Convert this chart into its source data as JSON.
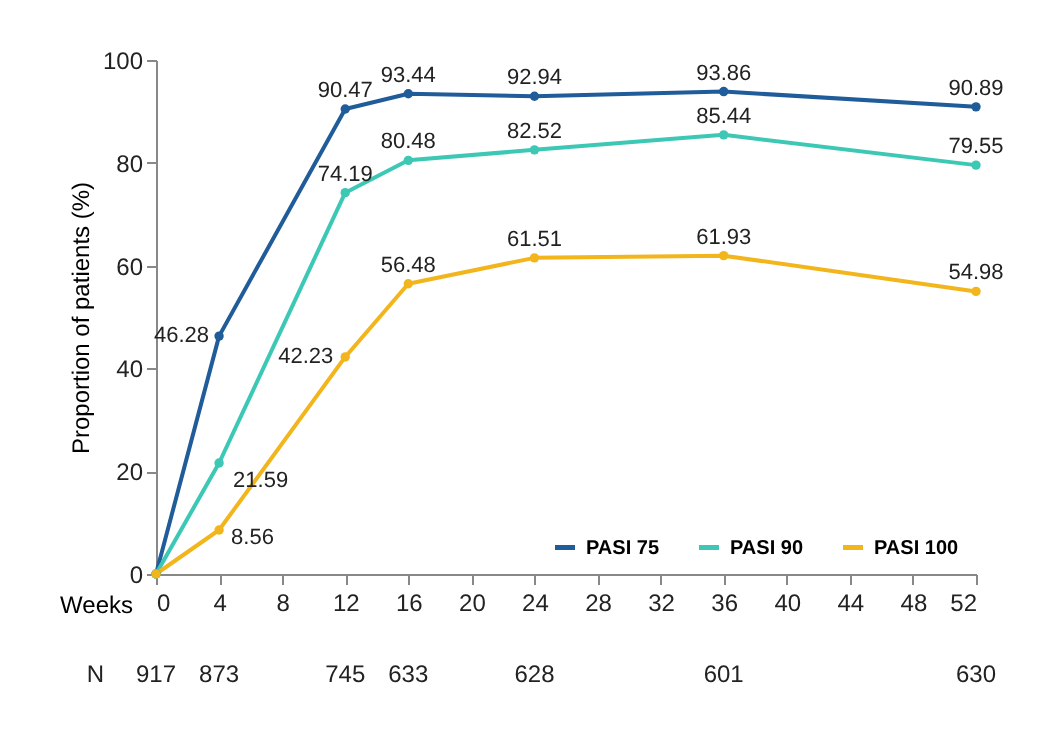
{
  "chart_data": {
    "type": "line",
    "xlabel": "Weeks",
    "ylabel": "Proportion of patients (%)",
    "x": [
      0,
      4,
      12,
      16,
      24,
      36,
      52
    ],
    "series": [
      {
        "name": "PASI 75",
        "color": "#1f5c99",
        "values": [
          0,
          46.28,
          90.47,
          93.44,
          92.94,
          93.86,
          90.89
        ],
        "value_labels": [
          null,
          "46.28",
          "90.47",
          "93.44",
          "92.94",
          "93.86",
          "90.89"
        ]
      },
      {
        "name": "PASI 90",
        "color": "#3cc8b4",
        "values": [
          0,
          21.59,
          74.19,
          80.48,
          82.52,
          85.44,
          79.55
        ],
        "value_labels": [
          null,
          "21.59",
          "74.19",
          "80.48",
          "82.52",
          "85.44",
          "79.55"
        ]
      },
      {
        "name": "PASI 100",
        "color": "#f2b51c",
        "values": [
          0,
          8.56,
          42.23,
          56.48,
          61.51,
          61.93,
          54.98
        ],
        "value_labels": [
          null,
          "8.56",
          "42.23",
          "56.48",
          "61.51",
          "61.93",
          "54.98"
        ]
      }
    ],
    "xlim": [
      0,
      52
    ],
    "xticks": [
      0,
      4,
      8,
      12,
      16,
      20,
      24,
      28,
      32,
      36,
      40,
      44,
      48,
      52
    ],
    "ylim": [
      0,
      100
    ],
    "yticks": [
      0,
      20,
      40,
      60,
      80,
      100
    ],
    "grid": false,
    "legend": "bottom right",
    "marker": "circle",
    "line_style": "solid",
    "annotations": [
      "N",
      "917",
      "873",
      "745",
      "633",
      "628",
      "601",
      "630"
    ]
  }
}
